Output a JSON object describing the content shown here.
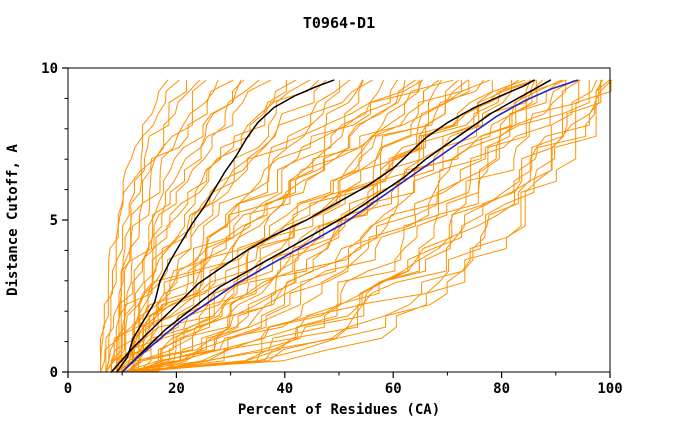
{
  "chart_data": {
    "type": "line",
    "title": "T0964-D1",
    "xlabel": "Percent of Residues (CA)",
    "ylabel": "Distance Cutoff, A",
    "xlim": [
      0,
      100
    ],
    "ylim": [
      0,
      10
    ],
    "x_ticks_major": [
      0,
      20,
      40,
      60,
      80,
      100
    ],
    "x_ticks_minor": [
      10,
      30,
      50,
      70,
      90
    ],
    "y_ticks_major": [
      0,
      5,
      10
    ],
    "y_ticks_minor": [
      1,
      2,
      3,
      4,
      6,
      7,
      8,
      9
    ],
    "grid": false,
    "legend": "none",
    "colors": {
      "ensemble": "#ff9100",
      "highlight": "#2222cc",
      "secondary": "#000000",
      "frame": "#000000",
      "background": "#ffffff"
    },
    "series": [
      {
        "name": "black-curve-steep",
        "color": "#000000",
        "width": 1.5,
        "points": [
          [
            9,
            0
          ],
          [
            11,
            0.5
          ],
          [
            12,
            1.1
          ],
          [
            14,
            1.7
          ],
          [
            16,
            2.3
          ],
          [
            17,
            3.0
          ],
          [
            19,
            3.7
          ],
          [
            21,
            4.3
          ],
          [
            23,
            4.9
          ],
          [
            25,
            5.4
          ],
          [
            27,
            6.0
          ],
          [
            29,
            6.6
          ],
          [
            31,
            7.1
          ],
          [
            33,
            7.7
          ],
          [
            35,
            8.2
          ],
          [
            38,
            8.7
          ],
          [
            42,
            9.1
          ],
          [
            46,
            9.4
          ],
          [
            49,
            9.6
          ]
        ]
      },
      {
        "name": "black-curve-2",
        "color": "#000000",
        "width": 1.5,
        "points": [
          [
            8,
            0
          ],
          [
            12,
            0.8
          ],
          [
            16,
            1.5
          ],
          [
            20,
            2.2
          ],
          [
            24,
            2.9
          ],
          [
            28,
            3.4
          ],
          [
            33,
            4.0
          ],
          [
            38,
            4.5
          ],
          [
            44,
            5.0
          ],
          [
            50,
            5.6
          ],
          [
            55,
            6.1
          ],
          [
            60,
            6.7
          ],
          [
            63,
            7.2
          ],
          [
            66,
            7.7
          ],
          [
            70,
            8.2
          ],
          [
            75,
            8.7
          ],
          [
            80,
            9.1
          ],
          [
            84,
            9.4
          ],
          [
            86,
            9.6
          ]
        ]
      },
      {
        "name": "black-curve-3",
        "color": "#000000",
        "width": 1.5,
        "points": [
          [
            10,
            0
          ],
          [
            14,
            0.7
          ],
          [
            18,
            1.4
          ],
          [
            23,
            2.1
          ],
          [
            28,
            2.8
          ],
          [
            34,
            3.4
          ],
          [
            40,
            4.0
          ],
          [
            46,
            4.6
          ],
          [
            52,
            5.2
          ],
          [
            57,
            5.8
          ],
          [
            62,
            6.4
          ],
          [
            66,
            7.0
          ],
          [
            70,
            7.5
          ],
          [
            74,
            8.0
          ],
          [
            78,
            8.5
          ],
          [
            82,
            8.9
          ],
          [
            86,
            9.3
          ],
          [
            89,
            9.6
          ]
        ]
      },
      {
        "name": "blue-curve",
        "color": "#2222cc",
        "width": 1.6,
        "points": [
          [
            10,
            0
          ],
          [
            13,
            0.5
          ],
          [
            17,
            1.1
          ],
          [
            21,
            1.7
          ],
          [
            26,
            2.3
          ],
          [
            31,
            2.9
          ],
          [
            36,
            3.4
          ],
          [
            41,
            3.9
          ],
          [
            46,
            4.4
          ],
          [
            51,
            4.9
          ],
          [
            55,
            5.4
          ],
          [
            59,
            5.9
          ],
          [
            63,
            6.4
          ],
          [
            67,
            6.9
          ],
          [
            71,
            7.4
          ],
          [
            75,
            7.9
          ],
          [
            79,
            8.4
          ],
          [
            84,
            8.9
          ],
          [
            89,
            9.3
          ],
          [
            94,
            9.6
          ]
        ]
      }
    ],
    "ensemble": {
      "name": "server-model-curves",
      "color": "#ff9100",
      "width": 1,
      "y_max": 9.6,
      "shape": "x(t) = start + (end-start)*t^p with t = y/y_max, small jitter",
      "curves_s_e_p": [
        [
          6,
          18,
          2.2
        ],
        [
          7,
          20,
          2.6
        ],
        [
          6,
          22,
          2.0
        ],
        [
          8,
          24,
          2.4
        ],
        [
          7,
          26,
          1.8
        ],
        [
          9,
          28,
          2.2
        ],
        [
          8,
          30,
          2.8
        ],
        [
          10,
          32,
          2.0
        ],
        [
          6,
          33,
          1.5
        ],
        [
          7,
          35,
          1.6
        ],
        [
          9,
          37,
          2.2
        ],
        [
          8,
          40,
          1.4
        ],
        [
          10,
          42,
          1.9
        ],
        [
          7,
          44,
          1.2
        ],
        [
          11,
          46,
          2.4
        ],
        [
          9,
          48,
          1.6
        ],
        [
          12,
          50,
          1.1
        ],
        [
          8,
          52,
          1.8
        ],
        [
          10,
          54,
          1.4
        ],
        [
          15,
          55,
          0.9
        ],
        [
          13,
          56,
          2.0
        ],
        [
          9,
          58,
          1.2
        ],
        [
          8,
          60,
          1.0
        ],
        [
          11,
          62,
          1.5
        ],
        [
          7,
          63,
          1.1
        ],
        [
          9,
          64,
          0.8
        ],
        [
          12,
          65,
          1.8
        ],
        [
          10,
          66,
          1.2
        ],
        [
          13,
          68,
          0.9
        ],
        [
          15,
          68,
          0.6
        ],
        [
          9,
          70,
          1.5
        ],
        [
          11,
          71,
          0.7
        ],
        [
          14,
          72,
          1.1
        ],
        [
          10,
          74,
          1.6
        ],
        [
          12,
          75,
          0.8
        ],
        [
          9,
          76,
          1.3
        ],
        [
          16,
          77,
          0.85
        ],
        [
          13,
          78,
          1.0
        ],
        [
          11,
          80,
          0.6
        ],
        [
          10,
          81,
          1.2
        ],
        [
          12,
          82,
          0.7
        ],
        [
          9,
          83,
          1.0
        ],
        [
          14,
          84,
          0.5
        ],
        [
          11,
          85,
          0.9
        ],
        [
          8,
          85,
          1.4
        ],
        [
          13,
          86,
          1.3
        ],
        [
          10,
          87,
          0.6
        ],
        [
          12,
          88,
          1.0
        ],
        [
          9,
          89,
          0.45
        ],
        [
          15,
          90,
          0.8
        ],
        [
          11,
          91,
          0.55
        ],
        [
          13,
          92,
          1.1
        ],
        [
          10,
          93,
          0.7
        ],
        [
          12,
          94,
          0.5
        ],
        [
          14,
          95,
          0.9
        ],
        [
          10,
          96,
          0.4
        ],
        [
          12,
          97,
          0.55
        ],
        [
          9,
          98,
          0.35
        ],
        [
          13,
          99,
          0.5
        ],
        [
          11,
          100,
          0.4
        ],
        [
          14,
          100,
          0.6
        ],
        [
          8,
          97,
          0.3
        ],
        [
          12,
          99,
          0.45
        ]
      ]
    }
  }
}
